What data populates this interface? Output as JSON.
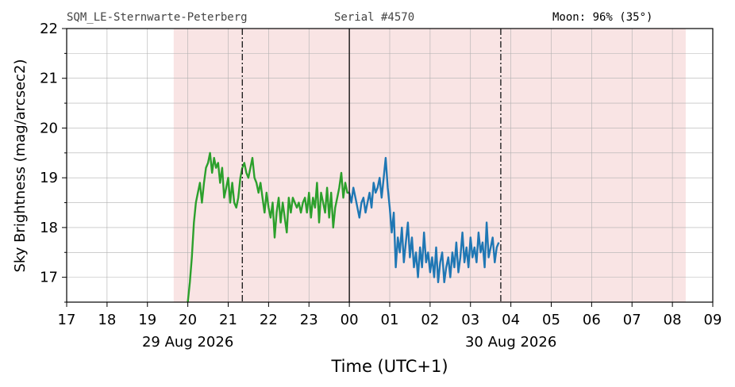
{
  "header": {
    "station": "SQM_LE-Sternwarte-Peterberg",
    "serial": "Serial #4570",
    "moon": "Moon: 96% (35°)"
  },
  "colors": {
    "night_shade": "#f9e4e4",
    "series_evening": "#2ca02c",
    "series_morning": "#1f77b4",
    "grid": "#b0b0b0"
  },
  "chart_data": {
    "type": "line",
    "title": "",
    "xlabel": "Time (UTC+1)",
    "ylabel": "Sky Brightness (mag/arcsec2)",
    "xlim": [
      17,
      33
    ],
    "ylim": [
      16.5,
      22
    ],
    "x_tick_labels": [
      "17",
      "18",
      "19",
      "20",
      "21",
      "22",
      "23",
      "00",
      "01",
      "02",
      "03",
      "04",
      "05",
      "06",
      "07",
      "08",
      "09"
    ],
    "y_tick_values": [
      17,
      18,
      19,
      20,
      21,
      22
    ],
    "date_labels": [
      {
        "text": "29 Aug 2026",
        "x": 20
      },
      {
        "text": "30 Aug 2026",
        "x": 28
      }
    ],
    "grid": true,
    "night_span": [
      19.65,
      32.33
    ],
    "astronomical_twilight_lines": [
      21.35,
      27.75
    ],
    "midnight_line": 24.0,
    "series": [
      {
        "x": [
          20.0,
          20.05,
          20.1,
          20.15,
          20.2,
          20.25,
          20.3,
          20.35,
          20.4,
          20.45,
          20.5,
          20.55,
          20.6,
          20.65,
          20.7,
          20.75,
          20.8,
          20.85,
          20.9,
          20.95,
          21.0,
          21.05,
          21.1,
          21.15,
          21.2,
          21.25,
          21.3,
          21.35,
          21.4,
          21.45,
          21.5,
          21.55,
          21.6,
          21.65,
          21.7,
          21.75,
          21.8,
          21.85,
          21.9,
          21.95,
          22.0,
          22.05,
          22.1,
          22.15,
          22.2,
          22.25,
          22.3,
          22.35,
          22.4,
          22.45,
          22.5,
          22.55,
          22.6,
          22.65,
          22.7,
          22.75,
          22.8,
          22.85,
          22.9,
          22.95,
          23.0,
          23.05,
          23.1,
          23.15,
          23.2,
          23.25,
          23.3,
          23.35,
          23.4,
          23.45,
          23.5,
          23.55,
          23.6,
          23.65,
          23.7,
          23.75,
          23.8,
          23.85,
          23.9,
          23.95,
          24.0
        ],
        "values": [
          16.5,
          16.9,
          17.4,
          18.1,
          18.5,
          18.7,
          18.9,
          18.5,
          18.9,
          19.2,
          19.3,
          19.5,
          19.1,
          19.4,
          19.2,
          19.3,
          18.9,
          19.2,
          18.6,
          18.8,
          19.0,
          18.5,
          18.9,
          18.5,
          18.4,
          18.6,
          19.0,
          19.2,
          19.3,
          19.1,
          19.0,
          19.2,
          19.4,
          19.0,
          18.9,
          18.7,
          18.9,
          18.6,
          18.3,
          18.7,
          18.4,
          18.2,
          18.5,
          17.8,
          18.3,
          18.6,
          18.1,
          18.5,
          18.2,
          17.9,
          18.6,
          18.3,
          18.6,
          18.5,
          18.4,
          18.5,
          18.3,
          18.5,
          18.6,
          18.3,
          18.7,
          18.2,
          18.6,
          18.4,
          18.9,
          18.1,
          18.7,
          18.5,
          18.3,
          18.8,
          18.2,
          18.7,
          18.0,
          18.4,
          18.6,
          18.8,
          19.1,
          18.6,
          18.9,
          18.7,
          18.7
        ]
      },
      {
        "x": [
          24.0,
          24.05,
          24.1,
          24.15,
          24.2,
          24.25,
          24.3,
          24.35,
          24.4,
          24.45,
          24.5,
          24.55,
          24.6,
          24.65,
          24.7,
          24.75,
          24.8,
          24.85,
          24.9,
          24.95,
          25.0,
          25.05,
          25.1,
          25.15,
          25.2,
          25.25,
          25.3,
          25.35,
          25.4,
          25.45,
          25.5,
          25.55,
          25.6,
          25.65,
          25.7,
          25.75,
          25.8,
          25.85,
          25.9,
          25.95,
          26.0,
          26.05,
          26.1,
          26.15,
          26.2,
          26.25,
          26.3,
          26.35,
          26.4,
          26.45,
          26.5,
          26.55,
          26.6,
          26.65,
          26.7,
          26.75,
          26.8,
          26.85,
          26.9,
          26.95,
          27.0,
          27.05,
          27.1,
          27.15,
          27.2,
          27.25,
          27.3,
          27.35,
          27.4,
          27.45,
          27.5,
          27.55,
          27.6,
          27.65,
          27.7
        ],
        "values": [
          18.7,
          18.5,
          18.8,
          18.6,
          18.4,
          18.2,
          18.5,
          18.6,
          18.3,
          18.5,
          18.7,
          18.4,
          18.9,
          18.7,
          18.8,
          19.0,
          18.6,
          19.0,
          19.4,
          18.8,
          18.4,
          17.9,
          18.3,
          17.2,
          17.8,
          17.5,
          18.0,
          17.3,
          17.7,
          18.1,
          17.4,
          17.8,
          17.2,
          17.5,
          17.0,
          17.6,
          17.2,
          17.9,
          17.3,
          17.5,
          17.1,
          17.4,
          17.0,
          17.6,
          16.9,
          17.3,
          17.5,
          16.9,
          17.2,
          17.4,
          17.0,
          17.5,
          17.2,
          17.7,
          17.1,
          17.4,
          17.9,
          17.3,
          17.6,
          17.2,
          17.8,
          17.4,
          17.6,
          17.3,
          17.9,
          17.5,
          17.7,
          17.2,
          18.1,
          17.4,
          17.6,
          17.8,
          17.3,
          17.6,
          17.7
        ]
      }
    ]
  }
}
